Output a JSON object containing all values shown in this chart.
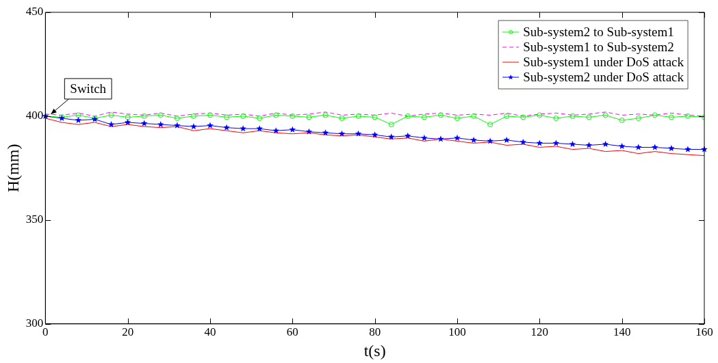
{
  "chart_data": {
    "type": "line",
    "xlabel": "t(s)",
    "ylabel": "H(mm)",
    "x": [
      0,
      4,
      8,
      12,
      16,
      20,
      24,
      28,
      32,
      36,
      40,
      44,
      48,
      52,
      56,
      60,
      64,
      68,
      72,
      76,
      80,
      84,
      88,
      92,
      96,
      100,
      104,
      108,
      112,
      116,
      120,
      124,
      128,
      132,
      136,
      140,
      144,
      148,
      152,
      156,
      160
    ],
    "series": [
      {
        "name": "Sub-system2 to Sub-system1",
        "color": "#00ff00",
        "marker": "circle",
        "line_style": "solid",
        "values": [
          400,
          399.5,
          400.5,
          399,
          400.5,
          399.5,
          400,
          400.5,
          399,
          400,
          400.5,
          399.5,
          400,
          399,
          400.5,
          400,
          399.5,
          400.5,
          399,
          400,
          399.5,
          396,
          400,
          399.5,
          400.5,
          399,
          400,
          396,
          400,
          399.5,
          400.5,
          399,
          400,
          399.5,
          400.5,
          398,
          399,
          400.5,
          399.5,
          400,
          399.5
        ]
      },
      {
        "name": "Sub-system1 to Sub-system2",
        "color": "#ff00ff",
        "marker": "none",
        "line_style": "dashed",
        "values": [
          401,
          400.5,
          401.5,
          400,
          402,
          401,
          400.5,
          401.5,
          400,
          401,
          401.5,
          400.5,
          401,
          400,
          401.5,
          400.5,
          401,
          402,
          400.5,
          401,
          400.5,
          401.5,
          400,
          401,
          401.5,
          400.5,
          401,
          400.5,
          401.5,
          400,
          401,
          401.5,
          400.5,
          401,
          402,
          400.5,
          401,
          400.5,
          401.5,
          400.5,
          400
        ]
      },
      {
        "name": "Sub-system1 under DoS attack",
        "color": "#ff0000",
        "marker": "none",
        "line_style": "solid",
        "values": [
          399,
          397,
          396,
          397,
          395,
          396,
          395,
          394.5,
          395,
          393,
          394,
          393,
          392,
          393,
          392,
          391.5,
          392,
          391,
          390.5,
          391,
          390,
          389,
          389.5,
          388,
          389,
          388,
          387,
          387.5,
          386,
          386.5,
          385,
          385.5,
          384,
          384.5,
          383,
          383.5,
          382,
          383,
          382,
          381.5,
          381
        ]
      },
      {
        "name": "Sub-system2 under DoS attack",
        "color": "#0000ff",
        "marker": "star",
        "line_style": "solid",
        "values": [
          400,
          399,
          398,
          398.5,
          396,
          397,
          396.5,
          396,
          395.5,
          395,
          395.5,
          394.5,
          394,
          394,
          393,
          393.5,
          392.5,
          392,
          391.5,
          391.5,
          391,
          390,
          390.5,
          389.5,
          389,
          389.5,
          388.5,
          388,
          388.5,
          387.5,
          387,
          387,
          386.5,
          386,
          386.5,
          385.5,
          385,
          385,
          384.5,
          384,
          384
        ]
      }
    ],
    "xlim": [
      0,
      160
    ],
    "xticks": [
      0,
      20,
      40,
      60,
      80,
      100,
      120,
      140,
      160
    ],
    "ylim": [
      300,
      450
    ],
    "yticks": [
      300,
      350,
      400,
      450
    ],
    "grid": false,
    "legend": "top right",
    "annotations": [
      {
        "text": "Switch",
        "x": 1,
        "y": 400
      }
    ]
  }
}
